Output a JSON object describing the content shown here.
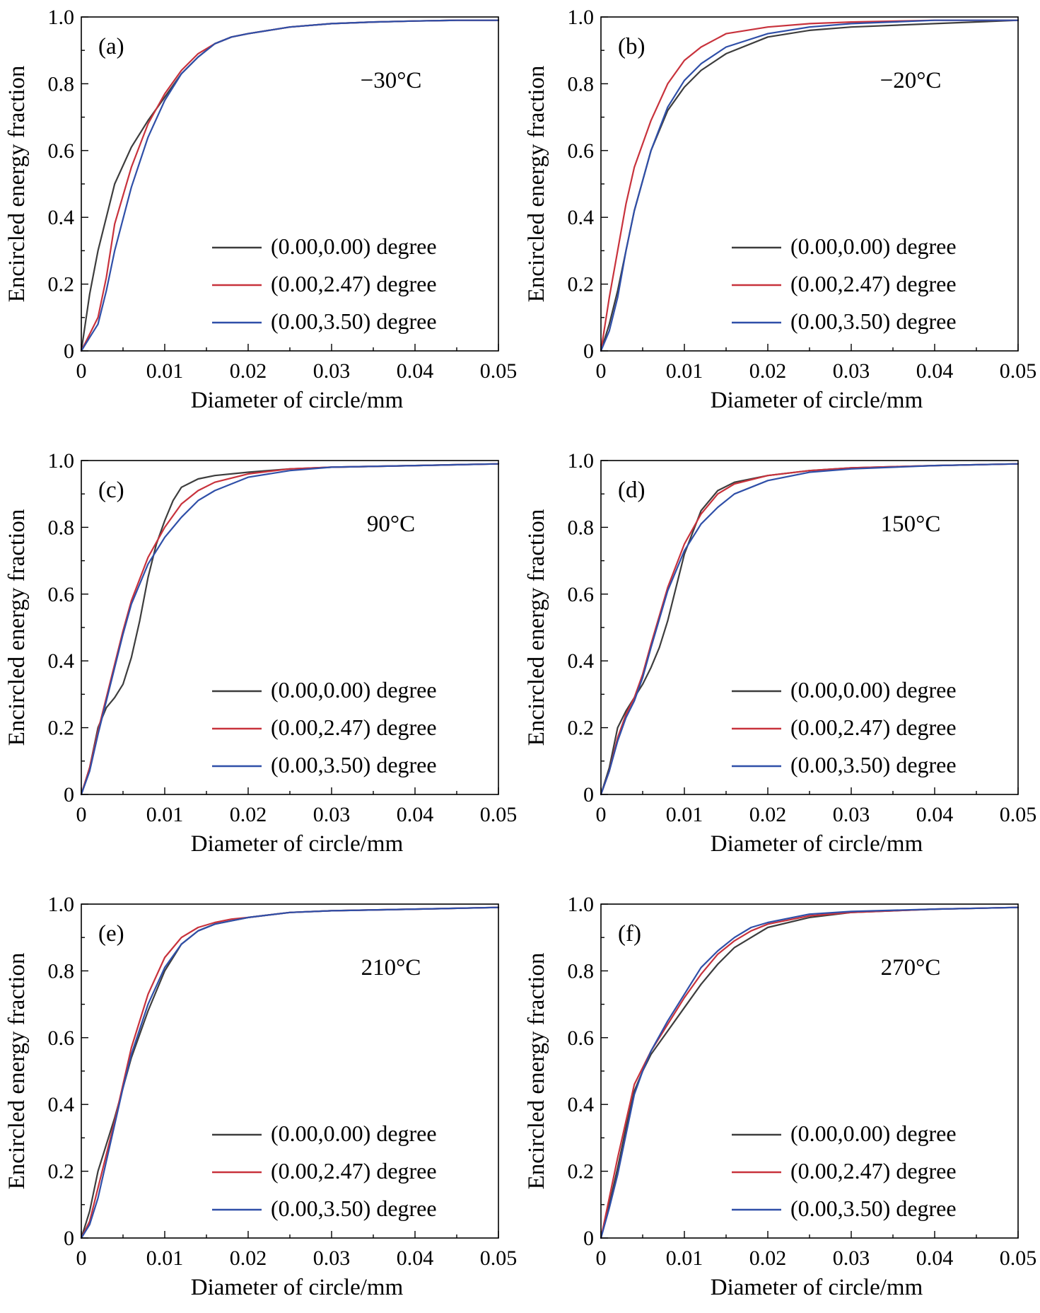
{
  "figure": {
    "domain": "Chart",
    "layout": "3 rows x 2 columns"
  },
  "series_styles": [
    {
      "name": "(0.00,0.00) degree",
      "color": "#3d3d3d"
    },
    {
      "name": "(0.00,2.47) degree",
      "color": "#c8323c"
    },
    {
      "name": "(0.00,3.50) degree",
      "color": "#2f4fa8"
    }
  ],
  "chart_data": [
    {
      "type": "line",
      "panel": "(a)",
      "temperature": "−30°C",
      "xlabel": "Diameter of circle/mm",
      "ylabel": "Encircled energy fraction",
      "xlim": [
        0,
        0.05
      ],
      "ylim": [
        0,
        1.0
      ],
      "xticks": [
        "0",
        "0.01",
        "0.02",
        "0.03",
        "0.04",
        "0.05"
      ],
      "yticks": [
        "0",
        "0.2",
        "0.4",
        "0.6",
        "0.8",
        "1.0"
      ],
      "legend_position": "bottom-right",
      "grid": false,
      "series": [
        {
          "name": "(0.00,0.00) degree",
          "x": [
            0,
            0.001,
            0.002,
            0.004,
            0.006,
            0.008,
            0.01,
            0.012,
            0.014,
            0.016,
            0.018,
            0.02,
            0.025,
            0.03,
            0.035,
            0.04,
            0.045,
            0.05
          ],
          "y": [
            0,
            0.17,
            0.3,
            0.5,
            0.61,
            0.69,
            0.76,
            0.83,
            0.88,
            0.92,
            0.94,
            0.95,
            0.97,
            0.98,
            0.985,
            0.988,
            0.99,
            0.99
          ]
        },
        {
          "name": "(0.00,2.47) degree",
          "x": [
            0,
            0.001,
            0.002,
            0.003,
            0.004,
            0.006,
            0.008,
            0.01,
            0.012,
            0.014,
            0.016,
            0.018,
            0.02,
            0.025,
            0.03,
            0.035,
            0.04,
            0.045,
            0.05
          ],
          "y": [
            0,
            0.05,
            0.1,
            0.22,
            0.38,
            0.55,
            0.68,
            0.77,
            0.84,
            0.89,
            0.92,
            0.94,
            0.95,
            0.97,
            0.98,
            0.985,
            0.988,
            0.99,
            0.99
          ]
        },
        {
          "name": "(0.00,3.50) degree",
          "x": [
            0,
            0.001,
            0.002,
            0.003,
            0.004,
            0.006,
            0.008,
            0.01,
            0.012,
            0.014,
            0.016,
            0.018,
            0.02,
            0.025,
            0.03,
            0.035,
            0.04,
            0.045,
            0.05
          ],
          "y": [
            0,
            0.04,
            0.08,
            0.18,
            0.3,
            0.49,
            0.64,
            0.75,
            0.83,
            0.88,
            0.92,
            0.94,
            0.95,
            0.97,
            0.98,
            0.985,
            0.988,
            0.99,
            0.99
          ]
        }
      ]
    },
    {
      "type": "line",
      "panel": "(b)",
      "temperature": "−20°C",
      "xlabel": "Diameter of circle/mm",
      "ylabel": "Encircled energy fraction",
      "xlim": [
        0,
        0.05
      ],
      "ylim": [
        0,
        1.0
      ],
      "xticks": [
        "0",
        "0.01",
        "0.02",
        "0.03",
        "0.04",
        "0.05"
      ],
      "yticks": [
        "0",
        "0.2",
        "0.4",
        "0.6",
        "0.8",
        "1.0"
      ],
      "legend_position": "bottom-right",
      "grid": false,
      "series": [
        {
          "name": "(0.00,0.00) degree",
          "x": [
            0,
            0.001,
            0.002,
            0.003,
            0.004,
            0.006,
            0.008,
            0.01,
            0.012,
            0.015,
            0.02,
            0.025,
            0.03,
            0.04,
            0.05
          ],
          "y": [
            0,
            0.08,
            0.18,
            0.3,
            0.42,
            0.6,
            0.72,
            0.79,
            0.84,
            0.89,
            0.94,
            0.96,
            0.97,
            0.98,
            0.99
          ]
        },
        {
          "name": "(0.00,2.47) degree",
          "x": [
            0,
            0.001,
            0.002,
            0.003,
            0.004,
            0.006,
            0.008,
            0.01,
            0.012,
            0.015,
            0.02,
            0.025,
            0.03,
            0.04,
            0.05
          ],
          "y": [
            0,
            0.16,
            0.3,
            0.44,
            0.55,
            0.69,
            0.8,
            0.87,
            0.91,
            0.95,
            0.97,
            0.98,
            0.985,
            0.99,
            0.99
          ]
        },
        {
          "name": "(0.00,3.50) degree",
          "x": [
            0,
            0.001,
            0.002,
            0.003,
            0.004,
            0.006,
            0.008,
            0.01,
            0.012,
            0.015,
            0.02,
            0.025,
            0.03,
            0.04,
            0.05
          ],
          "y": [
            0,
            0.06,
            0.16,
            0.3,
            0.42,
            0.6,
            0.73,
            0.81,
            0.86,
            0.91,
            0.95,
            0.97,
            0.98,
            0.99,
            0.99
          ]
        }
      ]
    },
    {
      "type": "line",
      "panel": "(c)",
      "temperature": "90°C",
      "xlabel": "Diameter of circle/mm",
      "ylabel": "Encircled energy fraction",
      "xlim": [
        0,
        0.05
      ],
      "ylim": [
        0,
        1.0
      ],
      "xticks": [
        "0",
        "0.01",
        "0.02",
        "0.03",
        "0.04",
        "0.05"
      ],
      "yticks": [
        "0",
        "0.2",
        "0.4",
        "0.6",
        "0.8",
        "1.0"
      ],
      "legend_position": "bottom-right",
      "grid": false,
      "series": [
        {
          "name": "(0.00,0.00) degree",
          "x": [
            0,
            0.001,
            0.002,
            0.003,
            0.004,
            0.005,
            0.006,
            0.007,
            0.008,
            0.009,
            0.01,
            0.011,
            0.012,
            0.014,
            0.016,
            0.02,
            0.025,
            0.03,
            0.04,
            0.05
          ],
          "y": [
            0,
            0.08,
            0.2,
            0.26,
            0.29,
            0.33,
            0.41,
            0.52,
            0.65,
            0.75,
            0.82,
            0.88,
            0.92,
            0.945,
            0.955,
            0.965,
            0.975,
            0.98,
            0.985,
            0.99
          ]
        },
        {
          "name": "(0.00,2.47) degree",
          "x": [
            0,
            0.001,
            0.002,
            0.003,
            0.004,
            0.005,
            0.006,
            0.008,
            0.01,
            0.012,
            0.014,
            0.016,
            0.02,
            0.025,
            0.03,
            0.04,
            0.05
          ],
          "y": [
            0,
            0.08,
            0.19,
            0.29,
            0.39,
            0.49,
            0.58,
            0.71,
            0.8,
            0.87,
            0.91,
            0.935,
            0.96,
            0.975,
            0.98,
            0.985,
            0.99
          ]
        },
        {
          "name": "(0.00,3.50) degree",
          "x": [
            0,
            0.001,
            0.002,
            0.003,
            0.004,
            0.005,
            0.006,
            0.008,
            0.01,
            0.012,
            0.014,
            0.016,
            0.02,
            0.025,
            0.03,
            0.04,
            0.05
          ],
          "y": [
            0,
            0.07,
            0.18,
            0.28,
            0.38,
            0.48,
            0.57,
            0.69,
            0.77,
            0.83,
            0.88,
            0.91,
            0.95,
            0.97,
            0.98,
            0.985,
            0.99
          ]
        }
      ]
    },
    {
      "type": "line",
      "panel": "(d)",
      "temperature": "150°C",
      "xlabel": "Diameter of circle/mm",
      "ylabel": "Encircled energy fraction",
      "xlim": [
        0,
        0.05
      ],
      "ylim": [
        0,
        1.0
      ],
      "xticks": [
        "0",
        "0.01",
        "0.02",
        "0.03",
        "0.04",
        "0.05"
      ],
      "yticks": [
        "0",
        "0.2",
        "0.4",
        "0.6",
        "0.8",
        "1.0"
      ],
      "legend_position": "bottom-right",
      "grid": false,
      "series": [
        {
          "name": "(0.00,0.00) degree",
          "x": [
            0,
            0.001,
            0.002,
            0.003,
            0.004,
            0.005,
            0.006,
            0.007,
            0.008,
            0.009,
            0.01,
            0.012,
            0.014,
            0.016,
            0.02,
            0.025,
            0.03,
            0.04,
            0.05
          ],
          "y": [
            0,
            0.08,
            0.2,
            0.25,
            0.29,
            0.33,
            0.38,
            0.44,
            0.52,
            0.62,
            0.72,
            0.85,
            0.91,
            0.935,
            0.955,
            0.97,
            0.978,
            0.985,
            0.99
          ]
        },
        {
          "name": "(0.00,2.47) degree",
          "x": [
            0,
            0.001,
            0.002,
            0.003,
            0.004,
            0.005,
            0.006,
            0.008,
            0.01,
            0.012,
            0.014,
            0.016,
            0.02,
            0.025,
            0.03,
            0.04,
            0.05
          ],
          "y": [
            0,
            0.07,
            0.17,
            0.24,
            0.29,
            0.36,
            0.45,
            0.62,
            0.75,
            0.84,
            0.9,
            0.93,
            0.955,
            0.97,
            0.978,
            0.985,
            0.99
          ]
        },
        {
          "name": "(0.00,3.50) degree",
          "x": [
            0,
            0.001,
            0.002,
            0.003,
            0.004,
            0.005,
            0.006,
            0.008,
            0.01,
            0.012,
            0.014,
            0.016,
            0.02,
            0.025,
            0.03,
            0.04,
            0.05
          ],
          "y": [
            0,
            0.07,
            0.16,
            0.23,
            0.28,
            0.35,
            0.44,
            0.61,
            0.73,
            0.81,
            0.86,
            0.9,
            0.94,
            0.965,
            0.975,
            0.985,
            0.99
          ]
        }
      ]
    },
    {
      "type": "line",
      "panel": "(e)",
      "temperature": "210°C",
      "xlabel": "Diameter of circle/mm",
      "ylabel": "Encircled energy fraction",
      "xlim": [
        0,
        0.05
      ],
      "ylim": [
        0,
        1.0
      ],
      "xticks": [
        "0",
        "0.01",
        "0.02",
        "0.03",
        "0.04",
        "0.05"
      ],
      "yticks": [
        "0",
        "0.2",
        "0.4",
        "0.6",
        "0.8",
        "1.0"
      ],
      "legend_position": "bottom-right",
      "grid": false,
      "series": [
        {
          "name": "(0.00,0.00) degree",
          "x": [
            0,
            0.001,
            0.002,
            0.003,
            0.004,
            0.005,
            0.006,
            0.008,
            0.01,
            0.012,
            0.014,
            0.016,
            0.018,
            0.02,
            0.025,
            0.03,
            0.04,
            0.05
          ],
          "y": [
            0,
            0.08,
            0.2,
            0.28,
            0.36,
            0.45,
            0.54,
            0.68,
            0.8,
            0.88,
            0.92,
            0.94,
            0.95,
            0.96,
            0.975,
            0.98,
            0.985,
            0.99
          ]
        },
        {
          "name": "(0.00,2.47) degree",
          "x": [
            0,
            0.001,
            0.002,
            0.003,
            0.004,
            0.005,
            0.006,
            0.008,
            0.01,
            0.012,
            0.014,
            0.016,
            0.018,
            0.02,
            0.025,
            0.03,
            0.04,
            0.05
          ],
          "y": [
            0,
            0.05,
            0.15,
            0.25,
            0.35,
            0.46,
            0.57,
            0.73,
            0.84,
            0.9,
            0.93,
            0.945,
            0.955,
            0.96,
            0.975,
            0.98,
            0.985,
            0.99
          ]
        },
        {
          "name": "(0.00,3.50) degree",
          "x": [
            0,
            0.001,
            0.002,
            0.003,
            0.004,
            0.005,
            0.006,
            0.008,
            0.01,
            0.012,
            0.014,
            0.016,
            0.018,
            0.02,
            0.025,
            0.03,
            0.04,
            0.05
          ],
          "y": [
            0,
            0.04,
            0.12,
            0.23,
            0.34,
            0.45,
            0.55,
            0.7,
            0.81,
            0.88,
            0.92,
            0.94,
            0.95,
            0.96,
            0.975,
            0.98,
            0.985,
            0.99
          ]
        }
      ]
    },
    {
      "type": "line",
      "panel": "(f)",
      "temperature": "270°C",
      "xlabel": "Diameter of circle/mm",
      "ylabel": "Encircled energy fraction",
      "xlim": [
        0,
        0.05
      ],
      "ylim": [
        0,
        1.0
      ],
      "xticks": [
        "0",
        "0.01",
        "0.02",
        "0.03",
        "0.04",
        "0.05"
      ],
      "yticks": [
        "0",
        "0.2",
        "0.4",
        "0.6",
        "0.8",
        "1.0"
      ],
      "legend_position": "bottom-right",
      "grid": false,
      "series": [
        {
          "name": "(0.00,0.00) degree",
          "x": [
            0,
            0.001,
            0.002,
            0.003,
            0.004,
            0.005,
            0.006,
            0.008,
            0.01,
            0.012,
            0.014,
            0.016,
            0.018,
            0.02,
            0.025,
            0.03,
            0.04,
            0.05
          ],
          "y": [
            0,
            0.1,
            0.21,
            0.33,
            0.44,
            0.5,
            0.55,
            0.62,
            0.69,
            0.76,
            0.82,
            0.87,
            0.9,
            0.93,
            0.96,
            0.975,
            0.985,
            0.99
          ]
        },
        {
          "name": "(0.00,2.47) degree",
          "x": [
            0,
            0.001,
            0.002,
            0.003,
            0.004,
            0.005,
            0.006,
            0.008,
            0.01,
            0.012,
            0.014,
            0.016,
            0.018,
            0.02,
            0.025,
            0.03,
            0.04,
            0.05
          ],
          "y": [
            0,
            0.12,
            0.24,
            0.35,
            0.46,
            0.51,
            0.56,
            0.64,
            0.72,
            0.79,
            0.85,
            0.89,
            0.92,
            0.94,
            0.965,
            0.975,
            0.985,
            0.99
          ]
        },
        {
          "name": "(0.00,3.50) degree",
          "x": [
            0,
            0.001,
            0.002,
            0.003,
            0.004,
            0.005,
            0.006,
            0.008,
            0.01,
            0.012,
            0.014,
            0.016,
            0.018,
            0.02,
            0.025,
            0.03,
            0.04,
            0.05
          ],
          "y": [
            0,
            0.09,
            0.19,
            0.31,
            0.43,
            0.5,
            0.56,
            0.65,
            0.73,
            0.81,
            0.86,
            0.9,
            0.93,
            0.945,
            0.97,
            0.978,
            0.985,
            0.99
          ]
        }
      ]
    }
  ]
}
